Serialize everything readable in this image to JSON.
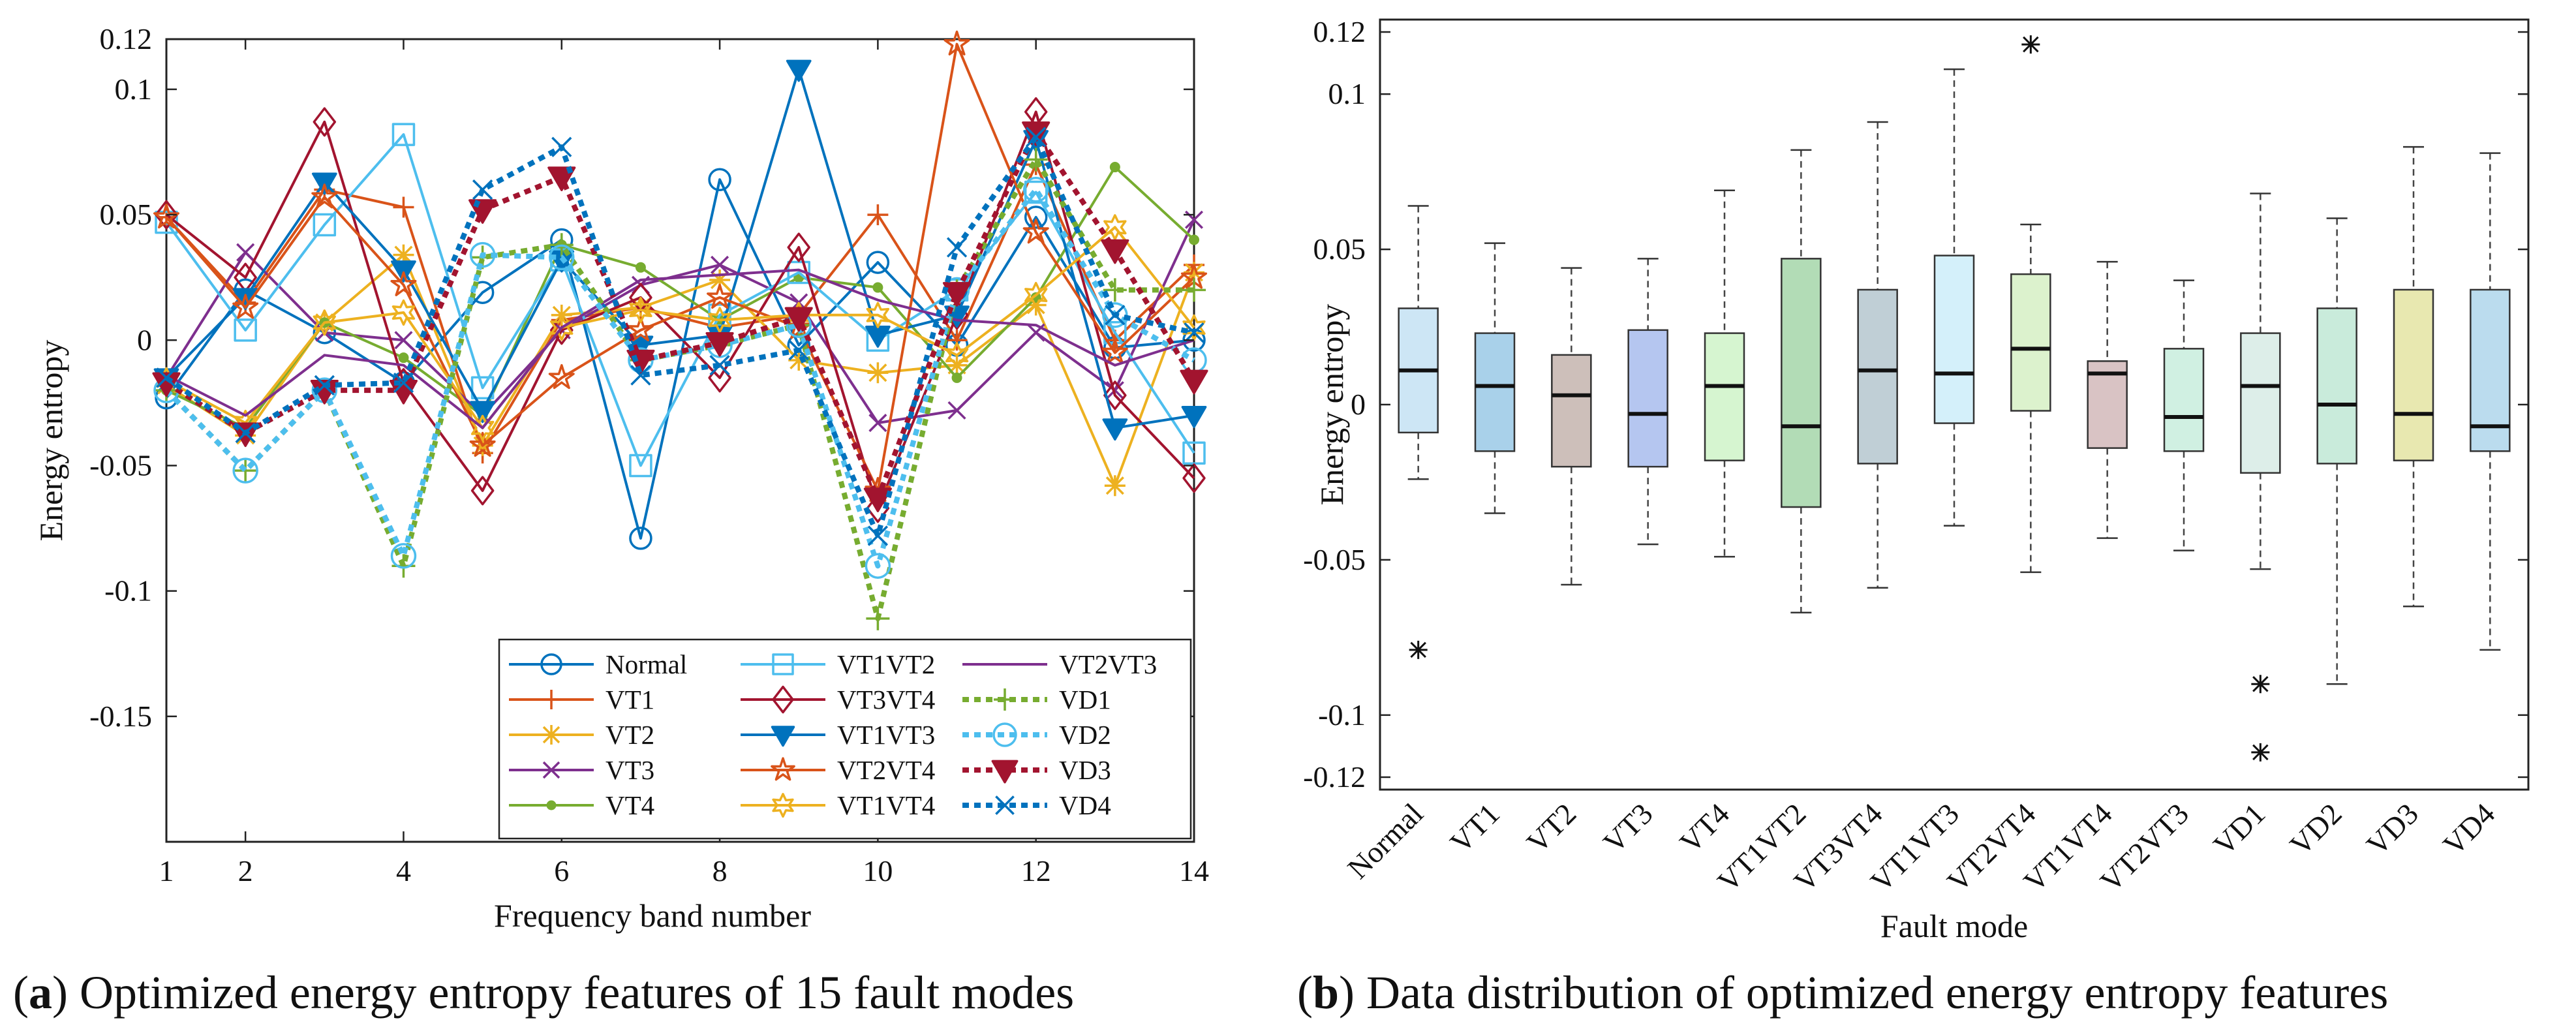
{
  "chart_data": [
    {
      "type": "line",
      "panel": "a",
      "caption_label": "a",
      "caption": "Optimized energy entropy features of 15 fault modes",
      "xlabel": "Frequency band number",
      "ylabel": "Energy entropy",
      "xlim": [
        1,
        14
      ],
      "ylim": [
        -0.2,
        0.12
      ],
      "xticks": [
        1,
        2,
        4,
        6,
        8,
        10,
        12,
        14
      ],
      "yticks": [
        0.12,
        0.1,
        0.05,
        0,
        -0.05,
        -0.1,
        -0.15
      ],
      "ytick_labels": [
        "0.12",
        "0.1",
        "0.05",
        "0",
        "-0.05",
        "-0.1",
        "-0.15"
      ],
      "legend_position": "bottom-right",
      "x": [
        1,
        2,
        3,
        4,
        5,
        6,
        7,
        8,
        9,
        10,
        11,
        12,
        13,
        14
      ],
      "series": [
        {
          "name": "Normal",
          "color": "#0072BD",
          "marker": "circle",
          "dash": "solid",
          "values": [
            -0.023,
            0.02,
            0.003,
            -0.017,
            0.019,
            0.04,
            -0.079,
            0.064,
            -0.002,
            0.031,
            -0.002,
            0.049,
            -0.003,
            0.0
          ]
        },
        {
          "name": "VT1",
          "color": "#D95319",
          "marker": "plus",
          "dash": "solid",
          "values": [
            0.049,
            0.015,
            0.06,
            0.053,
            -0.045,
            0.008,
            0.013,
            0.005,
            0.01,
            0.05,
            0.0,
            0.07,
            0.0,
            0.03
          ]
        },
        {
          "name": "VT2",
          "color": "#EDB120",
          "marker": "asterisk",
          "dash": "solid",
          "values": [
            -0.018,
            -0.038,
            0.007,
            0.034,
            -0.042,
            0.01,
            0.013,
            0.024,
            -0.008,
            -0.013,
            -0.01,
            0.014,
            -0.058,
            0.027
          ]
        },
        {
          "name": "VT3",
          "color": "#7E2F8E",
          "marker": "x",
          "dash": "solid",
          "values": [
            -0.015,
            0.035,
            0.003,
            0.0,
            -0.03,
            0.004,
            0.022,
            0.03,
            0.015,
            -0.033,
            -0.028,
            0.003,
            -0.02,
            0.048
          ]
        },
        {
          "name": "VT4",
          "color": "#77AC30",
          "marker": "dot",
          "dash": "solid",
          "values": [
            -0.02,
            -0.035,
            0.007,
            -0.007,
            -0.03,
            0.038,
            0.029,
            0.008,
            0.025,
            0.021,
            -0.015,
            0.017,
            0.069,
            0.04
          ]
        },
        {
          "name": "VT1VT2",
          "color": "#4DBEEE",
          "marker": "square",
          "dash": "solid",
          "values": [
            0.047,
            0.004,
            0.046,
            0.082,
            -0.019,
            0.032,
            -0.05,
            0.01,
            0.027,
            0.0,
            0.02,
            0.059,
            0.003,
            -0.045
          ]
        },
        {
          "name": "VT3VT4",
          "color": "#A2142F",
          "marker": "diamond",
          "dash": "solid",
          "values": [
            0.05,
            0.025,
            0.087,
            -0.017,
            -0.06,
            0.004,
            0.017,
            -0.015,
            0.037,
            -0.067,
            0.01,
            0.091,
            -0.022,
            -0.055
          ]
        },
        {
          "name": "VT1VT3",
          "color": "#0072BD",
          "marker": "triangle-down",
          "dash": "solid",
          "values": [
            -0.015,
            0.017,
            0.063,
            0.028,
            -0.028,
            0.032,
            -0.002,
            0.002,
            0.108,
            0.002,
            0.01,
            0.08,
            -0.035,
            -0.03
          ]
        },
        {
          "name": "VT2VT4",
          "color": "#D95319",
          "marker": "star",
          "dash": "solid",
          "values": [
            0.049,
            0.013,
            0.057,
            0.022,
            -0.042,
            -0.015,
            0.004,
            0.017,
            0.005,
            -0.06,
            0.118,
            0.043,
            -0.005,
            0.025
          ]
        },
        {
          "name": "VT1VT4",
          "color": "#EDB120",
          "marker": "hexagram",
          "dash": "solid",
          "values": [
            -0.016,
            -0.033,
            0.007,
            0.011,
            -0.035,
            0.005,
            0.012,
            0.008,
            0.01,
            0.01,
            -0.006,
            0.018,
            0.045,
            0.005
          ]
        },
        {
          "name": "VT2VT3",
          "color": "#7E2F8E",
          "marker": "none",
          "dash": "solid",
          "values": [
            -0.014,
            -0.03,
            -0.006,
            -0.01,
            -0.035,
            0.005,
            0.024,
            0.026,
            0.028,
            0.016,
            0.008,
            0.006,
            -0.01,
            0.0
          ]
        },
        {
          "name": "VD1",
          "color": "#77AC30",
          "marker": "plus",
          "dash": "dotted",
          "values": [
            -0.02,
            -0.052,
            -0.02,
            -0.09,
            0.033,
            0.038,
            -0.008,
            -0.002,
            0.006,
            -0.111,
            0.02,
            0.072,
            0.02,
            0.02
          ]
        },
        {
          "name": "VD2",
          "color": "#4DBEEE",
          "marker": "circle",
          "dash": "dotted",
          "values": [
            -0.02,
            -0.052,
            -0.02,
            -0.086,
            0.034,
            0.033,
            -0.008,
            -0.002,
            0.006,
            -0.09,
            0.02,
            0.06,
            0.01,
            -0.008
          ]
        },
        {
          "name": "VD3",
          "color": "#A2142F",
          "marker": "triangle-down",
          "dash": "dotted",
          "values": [
            -0.017,
            -0.037,
            -0.02,
            -0.02,
            0.052,
            0.065,
            -0.008,
            -0.001,
            0.009,
            -0.063,
            0.019,
            0.083,
            0.036,
            -0.016
          ]
        },
        {
          "name": "VD4",
          "color": "#0072BD",
          "marker": "x",
          "dash": "dotted",
          "values": [
            -0.015,
            -0.037,
            -0.018,
            -0.017,
            0.06,
            0.077,
            -0.014,
            -0.01,
            -0.004,
            -0.078,
            0.037,
            0.081,
            0.01,
            0.003
          ]
        }
      ]
    },
    {
      "type": "box",
      "panel": "b",
      "caption_label": "b",
      "caption": "Data distribution of optimized energy entropy features",
      "xlabel": "Fault mode",
      "ylabel": "Energy entropy",
      "ylim": [
        -0.124,
        0.124
      ],
      "yticks": [
        0.12,
        0.1,
        0.05,
        0,
        -0.05,
        -0.1,
        -0.12
      ],
      "ytick_labels": [
        "0.12",
        "0.1",
        "0.05",
        "0",
        "-0.05",
        "-0.1",
        "-0.12"
      ],
      "boxes": [
        {
          "name": "Normal",
          "color": "#CDE6F5",
          "whisker_low": -0.024,
          "q1": -0.009,
          "median": 0.011,
          "q3": 0.031,
          "whisker_high": 0.064,
          "outliers": [
            -0.079
          ]
        },
        {
          "name": "VT1",
          "color": "#A9D1EA",
          "whisker_low": -0.035,
          "q1": -0.015,
          "median": 0.006,
          "q3": 0.023,
          "whisker_high": 0.052,
          "outliers": []
        },
        {
          "name": "VT2",
          "color": "#CDBFBA",
          "whisker_low": -0.058,
          "q1": -0.02,
          "median": 0.003,
          "q3": 0.016,
          "whisker_high": 0.044,
          "outliers": []
        },
        {
          "name": "VT3",
          "color": "#B5C6F0",
          "whisker_low": -0.045,
          "q1": -0.02,
          "median": -0.003,
          "q3": 0.024,
          "whisker_high": 0.047,
          "outliers": []
        },
        {
          "name": "VT4",
          "color": "#D6F5D0",
          "whisker_low": -0.049,
          "q1": -0.018,
          "median": 0.006,
          "q3": 0.023,
          "whisker_high": 0.069,
          "outliers": []
        },
        {
          "name": "VT1VT2",
          "color": "#B2DCB6",
          "whisker_low": -0.067,
          "q1": -0.033,
          "median": -0.007,
          "q3": 0.047,
          "whisker_high": 0.082,
          "outliers": []
        },
        {
          "name": "VT3VT4",
          "color": "#C0CFD6",
          "whisker_low": -0.059,
          "q1": -0.019,
          "median": 0.011,
          "q3": 0.037,
          "whisker_high": 0.091,
          "outliers": []
        },
        {
          "name": "VT1VT3",
          "color": "#D4F0FA",
          "whisker_low": -0.039,
          "q1": -0.006,
          "median": 0.01,
          "q3": 0.048,
          "whisker_high": 0.108,
          "outliers": []
        },
        {
          "name": "VT2VT4",
          "color": "#DCF2CD",
          "whisker_low": -0.054,
          "q1": -0.002,
          "median": 0.018,
          "q3": 0.042,
          "whisker_high": 0.058,
          "outliers": [
            0.116
          ]
        },
        {
          "name": "VT1VT4",
          "color": "#D9C3C4",
          "whisker_low": -0.043,
          "q1": -0.014,
          "median": 0.01,
          "q3": 0.014,
          "whisker_high": 0.046,
          "outliers": []
        },
        {
          "name": "VT2VT3",
          "color": "#D0F0E2",
          "whisker_low": -0.047,
          "q1": -0.015,
          "median": -0.004,
          "q3": 0.018,
          "whisker_high": 0.04,
          "outliers": []
        },
        {
          "name": "VD1",
          "color": "#DDEEE9",
          "whisker_low": -0.053,
          "q1": -0.022,
          "median": 0.006,
          "q3": 0.023,
          "whisker_high": 0.068,
          "outliers": [
            -0.09,
            -0.112
          ]
        },
        {
          "name": "VD2",
          "color": "#C9EBDB",
          "whisker_low": -0.09,
          "q1": -0.019,
          "median": 0.0,
          "q3": 0.031,
          "whisker_high": 0.06,
          "outliers": []
        },
        {
          "name": "VD3",
          "color": "#E8E8B0",
          "whisker_low": -0.065,
          "q1": -0.018,
          "median": -0.003,
          "q3": 0.037,
          "whisker_high": 0.083,
          "outliers": []
        },
        {
          "name": "VD4",
          "color": "#BBDCEE",
          "whisker_low": -0.079,
          "q1": -0.015,
          "median": -0.007,
          "q3": 0.037,
          "whisker_high": 0.081,
          "outliers": []
        }
      ]
    }
  ]
}
